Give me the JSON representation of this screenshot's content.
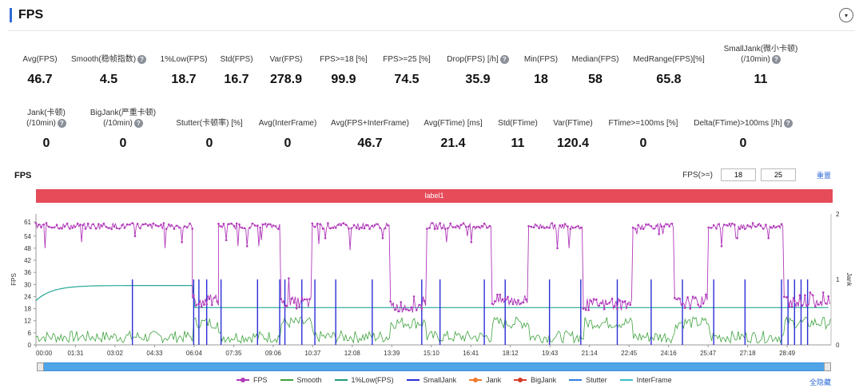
{
  "header": {
    "title": "FPS",
    "collapse_icon": "▾"
  },
  "stats_row1": [
    {
      "label": "Avg(FPS)",
      "value": "46.7",
      "help": false
    },
    {
      "label": "Smooth(稳帧指数)",
      "value": "4.5",
      "help": true
    },
    {
      "label": "1%Low(FPS)",
      "value": "18.7",
      "help": false
    },
    {
      "label": "Std(FPS)",
      "value": "16.7",
      "help": false
    },
    {
      "label": "Var(FPS)",
      "value": "278.9",
      "help": false
    },
    {
      "label": "FPS>=18 [%]",
      "value": "99.9",
      "help": false
    },
    {
      "label": "FPS>=25 [%]",
      "value": "74.5",
      "help": false
    },
    {
      "label": "Drop(FPS) [/h]",
      "value": "35.9",
      "help": true
    },
    {
      "label": "Min(FPS)",
      "value": "18",
      "help": false
    },
    {
      "label": "Median(FPS)",
      "value": "58",
      "help": false
    },
    {
      "label": "MedRange(FPS)[%]",
      "value": "65.8",
      "help": false
    },
    {
      "label": "SmallJank(微小卡顿)",
      "label2": "(/10min)",
      "value": "11",
      "help": true
    }
  ],
  "stats_row2": [
    {
      "label": "Jank(卡顿)",
      "label2": "(/10min)",
      "value": "0",
      "help": true
    },
    {
      "label": "BigJank(严重卡顿)",
      "label2": "(/10min)",
      "value": "0",
      "help": true
    },
    {
      "label": "Stutter(卡顿率) [%]",
      "value": "0",
      "help": false
    },
    {
      "label": "Avg(InterFrame)",
      "value": "0",
      "help": false
    },
    {
      "label": "Avg(FPS+InterFrame)",
      "value": "46.7",
      "help": false
    },
    {
      "label": "Avg(FTime) [ms]",
      "value": "21.4",
      "help": false
    },
    {
      "label": "Std(FTime)",
      "value": "11",
      "help": false
    },
    {
      "label": "Var(FTime)",
      "value": "120.4",
      "help": false
    },
    {
      "label": "FTime>=100ms [%]",
      "value": "0",
      "help": false
    },
    {
      "label": "Delta(FTime)>100ms [/h]",
      "value": "0",
      "help": true
    }
  ],
  "help_glyph": "?",
  "chart_section": {
    "heading": "FPS",
    "threshold_label": "FPS(>=)",
    "threshold_low": "18",
    "threshold_high": "25",
    "reset_label": "重置",
    "band_label": "label1",
    "hide_all_label": "全隐藏"
  },
  "chart_data": {
    "type": "line",
    "title": "FPS",
    "ylabel": "FPS",
    "y2label": "Jank",
    "ylim": [
      0,
      65
    ],
    "y2lim": [
      0,
      2
    ],
    "yticks": [
      0,
      6,
      12,
      18,
      24,
      30,
      36,
      42,
      48,
      54,
      61
    ],
    "y2ticks": [
      0,
      1,
      2
    ],
    "xlim_minutes": [
      0,
      30.5
    ],
    "xticks": [
      "00:00",
      "01:31",
      "03:02",
      "04:33",
      "06:04",
      "07:35",
      "09:06",
      "10:37",
      "12:08",
      "13:39",
      "15:10",
      "16:41",
      "18:12",
      "19:43",
      "21:14",
      "22:45",
      "24:16",
      "25:47",
      "27:18",
      "28:49"
    ],
    "fps_segments": [
      {
        "start_min": 0.0,
        "end_min": 6.0,
        "level": 59,
        "dips": [
          51,
          54,
          48
        ]
      },
      {
        "start_min": 6.0,
        "end_min": 7.0,
        "level": 22,
        "dips": [
          19,
          25
        ]
      },
      {
        "start_min": 7.0,
        "end_min": 9.4,
        "level": 59,
        "dips": [
          52,
          49
        ]
      },
      {
        "start_min": 9.4,
        "end_min": 10.6,
        "level": 21,
        "dips": [
          18,
          26,
          33
        ]
      },
      {
        "start_min": 10.6,
        "end_min": 13.6,
        "level": 59,
        "dips": [
          50,
          53,
          47
        ]
      },
      {
        "start_min": 13.6,
        "end_min": 15.0,
        "level": 19,
        "dips": [
          22,
          24
        ]
      },
      {
        "start_min": 15.0,
        "end_min": 17.5,
        "level": 59,
        "dips": [
          54,
          51
        ]
      },
      {
        "start_min": 17.5,
        "end_min": 18.9,
        "level": 22,
        "dips": [
          26,
          32,
          19
        ]
      },
      {
        "start_min": 18.9,
        "end_min": 21.0,
        "level": 59,
        "dips": [
          50,
          48
        ]
      },
      {
        "start_min": 21.0,
        "end_min": 22.9,
        "level": 20,
        "dips": [
          23,
          18
        ]
      },
      {
        "start_min": 22.9,
        "end_min": 24.5,
        "level": 59,
        "dips": [
          55,
          50
        ]
      },
      {
        "start_min": 24.5,
        "end_min": 25.8,
        "level": 21,
        "dips": [
          25,
          28
        ]
      },
      {
        "start_min": 25.8,
        "end_min": 28.7,
        "level": 59,
        "dips": [
          53,
          49
        ]
      },
      {
        "start_min": 28.7,
        "end_min": 30.5,
        "level": 22,
        "dips": [
          19,
          26
        ]
      }
    ],
    "low1_series": {
      "name": "1%Low(FPS)",
      "start": 22,
      "plateau": 29.5,
      "after_min": 6.0,
      "after_value": 18.5
    },
    "small_jank_minutes": [
      3.7,
      6.05,
      6.25,
      6.55,
      7.1,
      8.5,
      9.35,
      9.55,
      10.2,
      10.7,
      11.5,
      12.9,
      14.8,
      15.5,
      17.2,
      18.0,
      19.7,
      20.9,
      22.3,
      23.6,
      24.8,
      26.0,
      27.2,
      28.6,
      28.85,
      29.1,
      29.35,
      29.6
    ],
    "small_jank_value": 1,
    "legend": [
      {
        "name": "FPS",
        "color": "#b13aba",
        "marker": true
      },
      {
        "name": "Smooth",
        "color": "#3fa23f",
        "marker": false
      },
      {
        "name": "1%Low(FPS)",
        "color": "#1f9a7a",
        "marker": false
      },
      {
        "name": "SmallJank",
        "color": "#2a2fd6",
        "marker": false
      },
      {
        "name": "Jank",
        "color": "#f07a2b",
        "marker": true
      },
      {
        "name": "BigJank",
        "color": "#d63a2a",
        "marker": true
      },
      {
        "name": "Stutter",
        "color": "#2f7fe0",
        "marker": false
      },
      {
        "name": "InterFrame",
        "color": "#35c0cc",
        "marker": false
      }
    ]
  }
}
